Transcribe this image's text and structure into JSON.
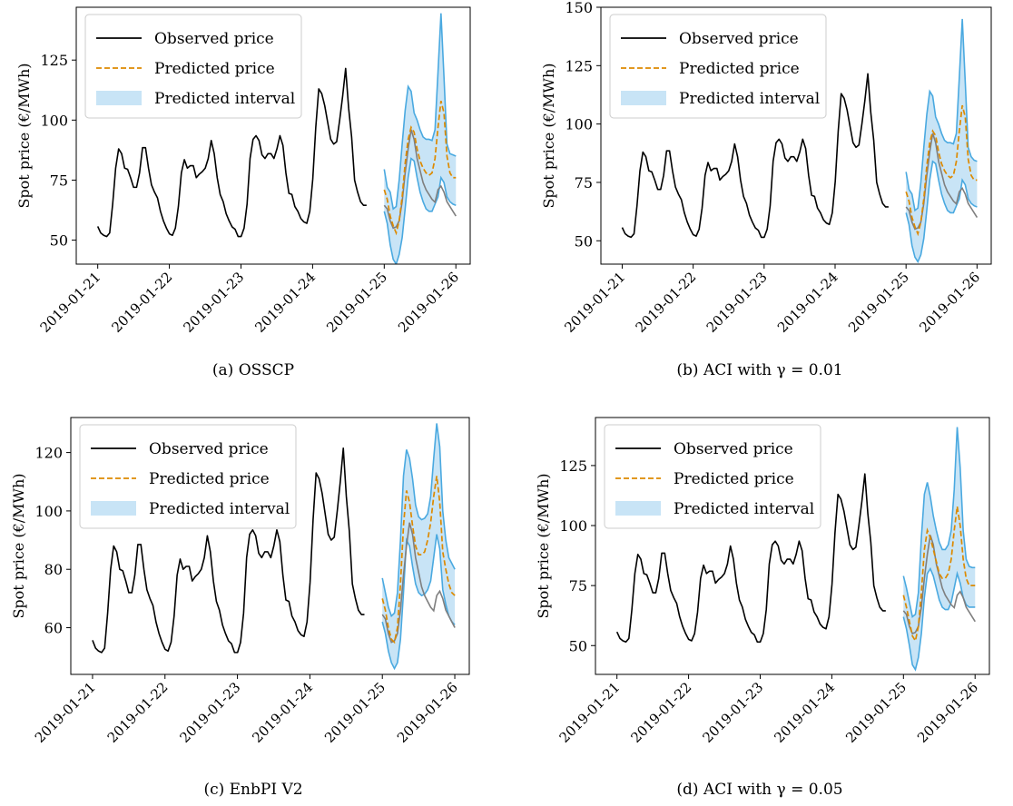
{
  "legend_labels": {
    "observed": "Observed price",
    "predicted": "Predicted price",
    "interval": "Predicted interval"
  },
  "colors": {
    "observed": "#000000",
    "observed_future": "#7f7f7f",
    "predicted": "#dd8a00",
    "interval_fill": "#c8e4f6",
    "interval_edge": "#4aa9e0"
  },
  "chart_data": [
    {
      "type": "line",
      "caption": "(a) OSSCP",
      "ylabel": "Spot price (€/MWh)",
      "ylim": [
        40,
        147
      ],
      "yticks": [
        50,
        75,
        100,
        125
      ],
      "ytick_labels": [
        "50",
        "75",
        "100",
        "125"
      ],
      "xlim": [
        -0.3,
        5.2
      ],
      "xticks": [
        0,
        1,
        2,
        3,
        4,
        5
      ],
      "xtick_labels": [
        "2019-01-21",
        "2019-01-22",
        "2019-01-23",
        "2019-01-24",
        "2019-01-25",
        "2019-01-26"
      ],
      "legend_position": "upper left",
      "series": [
        {
          "name": "Observed price",
          "x_start": 0.0,
          "x_step": 0.0417,
          "values": [
            55.7,
            53,
            52,
            51.5,
            53,
            65,
            80,
            88,
            86,
            80,
            79.5,
            76,
            72,
            72,
            78,
            88.5,
            88.5,
            80,
            73,
            70,
            67.6,
            62,
            58,
            55,
            52.6,
            52,
            55,
            64,
            78,
            83.5,
            80,
            81,
            81,
            76,
            77.5,
            78.5,
            80,
            84,
            91.5,
            86,
            76,
            69,
            66,
            61,
            58,
            55.5,
            54.5,
            51.5,
            51.5,
            55,
            65,
            84,
            92,
            93.5,
            91.5,
            85.5,
            84,
            86,
            86,
            84,
            88,
            93.5,
            89.5,
            78,
            69.5,
            69,
            64,
            62,
            59,
            57.6,
            57,
            62,
            75.5,
            97,
            113,
            111,
            106,
            99,
            92,
            90,
            91,
            100,
            110,
            121.5,
            105,
            93,
            75,
            70,
            66,
            64.5,
            64.5
          ]
        },
        {
          "name": "observed-future",
          "x_start": 4.0,
          "x_step": 0.0417,
          "values": [
            64.5,
            63,
            58,
            55,
            55.5,
            58,
            66,
            78,
            88,
            96,
            92,
            84,
            79,
            74,
            71,
            69,
            67,
            65.8,
            71,
            72.5,
            70,
            66,
            64,
            62,
            60
          ]
        },
        {
          "name": "Predicted price",
          "x_start": 4.0,
          "x_step": 0.0417,
          "values": [
            71,
            67,
            60,
            56,
            53,
            58,
            68,
            82,
            92,
            97,
            95,
            88,
            83,
            80,
            78,
            77,
            78,
            84,
            97,
            108,
            103,
            85,
            78,
            76,
            76
          ]
        },
        {
          "name": "interval-upper",
          "x_start": 4.0,
          "x_step": 0.0417,
          "values": [
            79.5,
            72,
            70,
            63,
            64,
            75,
            90,
            104,
            114,
            112,
            103,
            100,
            96,
            93,
            92,
            92,
            91.5,
            96,
            120,
            144.5,
            118,
            90,
            86,
            85.5,
            85
          ]
        },
        {
          "name": "interval-lower",
          "x_start": 4.0,
          "x_step": 0.0417,
          "values": [
            62,
            57,
            48,
            42,
            40,
            44,
            51,
            63,
            76,
            84,
            83,
            76,
            70,
            66,
            63,
            62,
            62,
            65,
            68,
            76,
            74,
            68,
            66,
            65,
            64.5
          ]
        }
      ]
    },
    {
      "type": "line",
      "caption": "(b) ACI with γ = 0.01",
      "ylabel": "Spot price (€/MWh)",
      "ylim": [
        40,
        150
      ],
      "yticks": [
        50,
        75,
        100,
        125,
        150
      ],
      "ytick_labels": [
        "50",
        "75",
        "100",
        "125",
        "150"
      ],
      "xlim": [
        -0.3,
        5.2
      ],
      "xticks": [
        0,
        1,
        2,
        3,
        4,
        5
      ],
      "xtick_labels": [
        "2019-01-21",
        "2019-01-22",
        "2019-01-23",
        "2019-01-24",
        "2019-01-25",
        "2019-01-26"
      ],
      "legend_position": "upper left",
      "series": [
        {
          "name": "Observed price",
          "x_start": 0.0,
          "x_step": 0.0417,
          "values": [
            55.7,
            53,
            52,
            51.5,
            53,
            65,
            80,
            88,
            86,
            80,
            79.5,
            76,
            72,
            72,
            78,
            88.5,
            88.5,
            80,
            73,
            70,
            67.6,
            62,
            58,
            55,
            52.6,
            52,
            55,
            64,
            78,
            83.5,
            80,
            81,
            81,
            76,
            77.5,
            78.5,
            80,
            84,
            91.5,
            86,
            76,
            69,
            66,
            61,
            58,
            55.5,
            54.5,
            51.5,
            51.5,
            55,
            65,
            84,
            92,
            93.5,
            91.5,
            85.5,
            84,
            86,
            86,
            84,
            88,
            93.5,
            89.5,
            78,
            69.5,
            69,
            64,
            62,
            59,
            57.6,
            57,
            62,
            75.5,
            97,
            113,
            111,
            106,
            99,
            92,
            90,
            91,
            100,
            110,
            121.5,
            105,
            93,
            75,
            70,
            66,
            64.5,
            64.5
          ]
        },
        {
          "name": "observed-future",
          "x_start": 4.0,
          "x_step": 0.0417,
          "values": [
            64.5,
            63,
            58,
            55,
            55.5,
            58,
            66,
            78,
            88,
            96,
            92,
            84,
            79,
            74,
            71,
            69,
            67,
            65.8,
            71,
            72.5,
            70,
            66,
            64,
            62,
            60
          ]
        },
        {
          "name": "Predicted price",
          "x_start": 4.0,
          "x_step": 0.0417,
          "values": [
            71,
            67,
            60,
            56,
            53,
            58,
            68,
            82,
            92,
            97,
            95,
            88,
            83,
            80,
            78,
            77,
            78,
            84,
            97,
            108,
            103,
            85,
            78,
            76,
            76
          ]
        },
        {
          "name": "interval-upper",
          "x_start": 4.0,
          "x_step": 0.0417,
          "values": [
            79.5,
            72,
            70,
            63,
            64,
            75,
            90,
            104,
            114,
            112,
            103,
            100,
            96,
            93,
            92,
            92,
            91.5,
            96,
            120,
            145,
            118,
            90,
            86,
            84.5,
            84
          ]
        },
        {
          "name": "interval-lower",
          "x_start": 4.0,
          "x_step": 0.0417,
          "values": [
            62,
            57,
            48,
            43,
            41,
            44,
            51,
            63,
            76,
            84,
            83,
            76,
            70,
            66,
            63,
            62,
            62,
            65,
            68,
            76,
            74,
            68,
            66,
            65,
            64.5
          ]
        }
      ]
    },
    {
      "type": "line",
      "caption": "(c) EnbPI V2",
      "ylabel": "Spot price (€/MWh)",
      "ylim": [
        44,
        132
      ],
      "yticks": [
        60,
        80,
        100,
        120
      ],
      "ytick_labels": [
        "60",
        "80",
        "100",
        "120"
      ],
      "xlim": [
        -0.3,
        5.2
      ],
      "xticks": [
        0,
        1,
        2,
        3,
        4,
        5
      ],
      "xtick_labels": [
        "2019-01-21",
        "2019-01-22",
        "2019-01-23",
        "2019-01-24",
        "2019-01-25",
        "2019-01-26"
      ],
      "legend_position": "upper left",
      "series": [
        {
          "name": "Observed price",
          "x_start": 0.0,
          "x_step": 0.0417,
          "values": [
            55.7,
            53,
            52,
            51.5,
            53,
            65,
            80,
            88,
            86,
            80,
            79.5,
            76,
            72,
            72,
            78,
            88.5,
            88.5,
            80,
            73,
            70,
            67.6,
            62,
            58,
            55,
            52.6,
            52,
            55,
            64,
            78,
            83.5,
            80,
            81,
            81,
            76,
            77.5,
            78.5,
            80,
            84,
            91.5,
            86,
            76,
            69,
            66,
            61,
            58,
            55.5,
            54.5,
            51.5,
            51.5,
            55,
            65,
            84,
            92,
            93.5,
            91.5,
            85.5,
            84,
            86,
            86,
            84,
            88,
            93.5,
            89.5,
            78,
            69.5,
            69,
            64,
            62,
            59,
            57.6,
            57,
            62,
            75.5,
            97,
            113,
            111,
            106,
            99,
            92,
            90,
            91,
            100,
            110,
            121.5,
            105,
            93,
            75,
            70,
            66,
            64.5,
            64.5
          ]
        },
        {
          "name": "observed-future",
          "x_start": 4.0,
          "x_step": 0.0417,
          "values": [
            64.5,
            63,
            58,
            55,
            55.5,
            58,
            66,
            78,
            88,
            96,
            92,
            84,
            79,
            74,
            71,
            69,
            67,
            65.8,
            71,
            72.5,
            70,
            66,
            64,
            62,
            60
          ]
        },
        {
          "name": "Predicted price",
          "x_start": 4.0,
          "x_step": 0.0417,
          "values": [
            70,
            66,
            60,
            56,
            55,
            60,
            75,
            95,
            107,
            103,
            95,
            88,
            85,
            85,
            86,
            90,
            96,
            105,
            112,
            103,
            86,
            80,
            75,
            72,
            71
          ]
        },
        {
          "name": "interval-upper",
          "x_start": 4.0,
          "x_step": 0.0417,
          "values": [
            77,
            72,
            67,
            64,
            65,
            72,
            90,
            112,
            121,
            118,
            111,
            102,
            98,
            97,
            97.5,
            99,
            105,
            118,
            130,
            122,
            100,
            90,
            84,
            82,
            80
          ]
        },
        {
          "name": "interval-lower",
          "x_start": 4.0,
          "x_step": 0.0417,
          "values": [
            62,
            58,
            52,
            48,
            46,
            48,
            56,
            72,
            90,
            88,
            81,
            75,
            72,
            71,
            71.5,
            73,
            76,
            84,
            92,
            87,
            73,
            68,
            64,
            62,
            61
          ]
        }
      ]
    },
    {
      "type": "line",
      "caption": "(d) ACI with γ = 0.05",
      "ylabel": "Spot price (€/MWh)",
      "ylim": [
        38,
        145
      ],
      "yticks": [
        50,
        75,
        100,
        125
      ],
      "ytick_labels": [
        "50",
        "75",
        "100",
        "125"
      ],
      "xlim": [
        -0.3,
        5.2
      ],
      "xticks": [
        0,
        1,
        2,
        3,
        4,
        5
      ],
      "xtick_labels": [
        "2019-01-21",
        "2019-01-22",
        "2019-01-23",
        "2019-01-24",
        "2019-01-25",
        "2019-01-26"
      ],
      "legend_position": "upper left",
      "series": [
        {
          "name": "Observed price",
          "x_start": 0.0,
          "x_step": 0.0417,
          "values": [
            55.7,
            53,
            52,
            51.5,
            53,
            65,
            80,
            88,
            86,
            80,
            79.5,
            76,
            72,
            72,
            78,
            88.5,
            88.5,
            80,
            73,
            70,
            67.6,
            62,
            58,
            55,
            52.6,
            52,
            55,
            64,
            78,
            83.5,
            80,
            81,
            81,
            76,
            77.5,
            78.5,
            80,
            84,
            91.5,
            86,
            76,
            69,
            66,
            61,
            58,
            55.5,
            54.5,
            51.5,
            51.5,
            55,
            65,
            84,
            92,
            93.5,
            91.5,
            85.5,
            84,
            86,
            86,
            84,
            88,
            93.5,
            89.5,
            78,
            69.5,
            69,
            64,
            62,
            59,
            57.6,
            57,
            62,
            75.5,
            97,
            113,
            111,
            106,
            99,
            92,
            90,
            91,
            100,
            110,
            121.5,
            105,
            93,
            75,
            70,
            66,
            64.5,
            64.5
          ]
        },
        {
          "name": "observed-future",
          "x_start": 4.0,
          "x_step": 0.0417,
          "values": [
            64.5,
            63,
            58,
            55,
            55.5,
            58,
            66,
            78,
            88,
            96,
            92,
            84,
            79,
            74,
            71,
            69,
            67,
            65.8,
            71,
            72.5,
            70,
            66,
            64,
            62,
            60
          ]
        },
        {
          "name": "Predicted price",
          "x_start": 4.0,
          "x_step": 0.0417,
          "values": [
            71,
            66,
            60,
            54,
            52,
            58,
            72,
            90,
            98,
            95,
            90,
            85,
            80,
            78,
            78,
            80,
            86,
            98,
            108,
            100,
            86,
            78,
            75,
            75,
            75
          ]
        },
        {
          "name": "interval-upper",
          "x_start": 4.0,
          "x_step": 0.0417,
          "values": [
            79,
            74,
            68,
            62,
            63,
            72,
            95,
            113,
            118,
            112,
            104,
            98,
            93,
            90,
            90,
            92,
            98,
            115,
            141,
            124,
            98,
            86,
            83,
            82.5,
            82.5
          ]
        },
        {
          "name": "interval-lower",
          "x_start": 4.0,
          "x_step": 0.0417,
          "values": [
            62,
            57,
            50,
            42,
            40,
            45,
            55,
            70,
            80,
            82,
            79,
            74,
            69,
            66,
            65,
            65,
            68,
            74,
            80,
            76,
            70,
            67,
            66,
            66,
            66
          ]
        }
      ]
    }
  ]
}
